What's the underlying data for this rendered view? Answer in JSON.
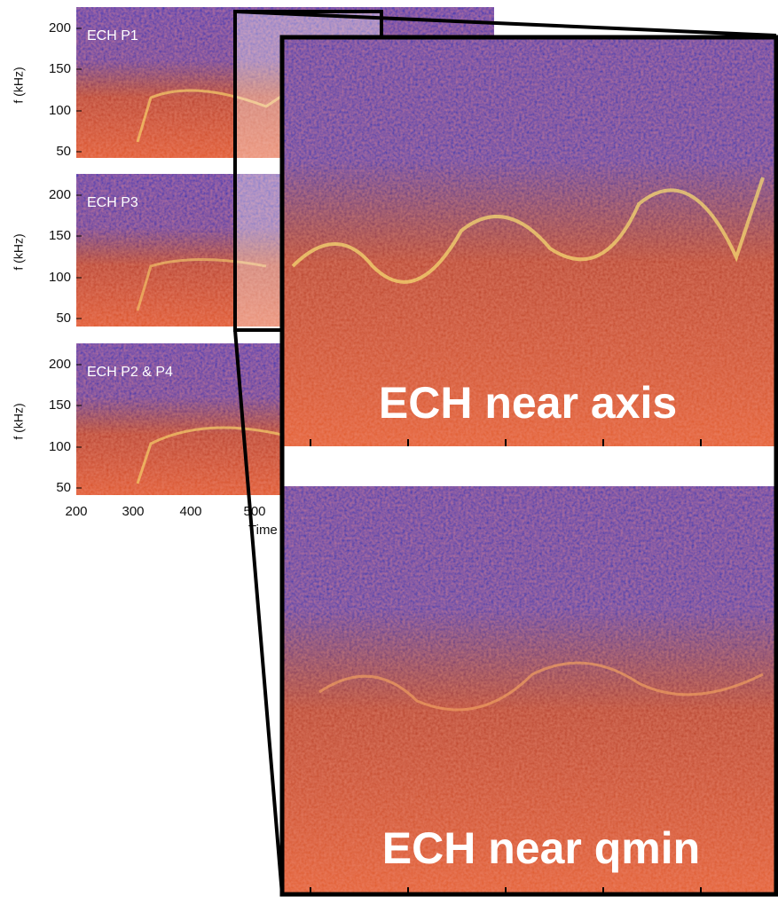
{
  "panels": [
    {
      "label": "ECH P1"
    },
    {
      "label": "ECH P3"
    },
    {
      "label": "ECH P2 & P4"
    }
  ],
  "y_axis": {
    "label": "f (kHz)",
    "ticks": [
      "200",
      "150",
      "100",
      "50"
    ]
  },
  "x_axis": {
    "label": "Time",
    "ticks": [
      "200",
      "300",
      "400",
      "500"
    ]
  },
  "zoom": {
    "upper_label": "ECH near axis",
    "lower_label": "ECH near qmin"
  }
}
